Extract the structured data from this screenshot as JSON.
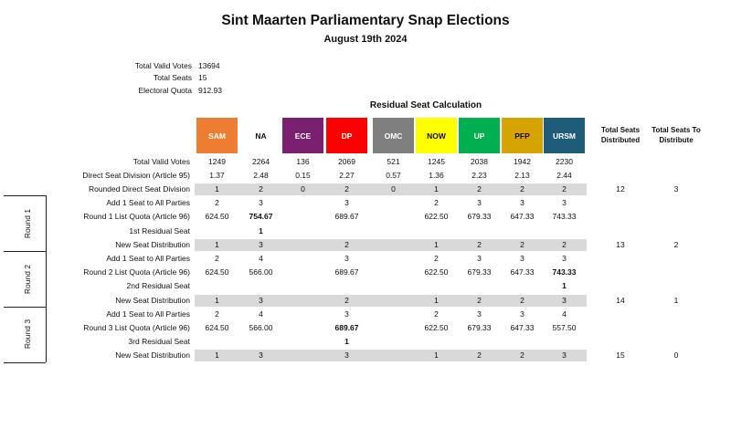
{
  "title": "Sint Maarten Parliamentary Snap Elections",
  "subtitle": "August 19th 2024",
  "summary": [
    {
      "label": "Total Valid Votes",
      "value": "13694"
    },
    {
      "label": "Total Seats",
      "value": "15"
    },
    {
      "label": "Electoral Quota",
      "value": "912.93"
    }
  ],
  "calc_title": "Residual Seat Calculation",
  "parties": [
    {
      "name": "SAM",
      "color": "#ed7d31"
    },
    {
      "name": "NA",
      "color": "#ffffff"
    },
    {
      "name": "ECE",
      "color": "#7b2070"
    },
    {
      "name": "DP",
      "color": "#ff0000"
    },
    {
      "name": "OMC",
      "color": "#7f7f7f"
    },
    {
      "name": "NOW",
      "color": "#ffff00"
    },
    {
      "name": "UP",
      "color": "#00b050"
    },
    {
      "name": "PFP",
      "color": "#d6a400"
    },
    {
      "name": "URSM",
      "color": "#1f5c79"
    }
  ],
  "total_headers": [
    "Total Seats Distributed",
    "Total Seats To Distribute"
  ],
  "rounds": [
    "Round 1",
    "Round 2",
    "Round 3"
  ],
  "rows": [
    {
      "label": "Total Valid Votes",
      "values": [
        "1249",
        "2264",
        "136",
        "2069",
        "521",
        "1245",
        "2038",
        "1942",
        "2230"
      ],
      "band": false,
      "bold": [],
      "totals": [
        "",
        ""
      ]
    },
    {
      "label": "Direct Seat Division (Article 95)",
      "values": [
        "1.37",
        "2.48",
        "0.15",
        "2.27",
        "0.57",
        "1.36",
        "2.23",
        "2.13",
        "2.44"
      ],
      "band": false,
      "bold": [],
      "totals": [
        "",
        ""
      ]
    },
    {
      "label": "Rounded Direct Seat Division",
      "values": [
        "1",
        "2",
        "0",
        "2",
        "0",
        "1",
        "2",
        "2",
        "2"
      ],
      "band": true,
      "bold": [],
      "totals": [
        "12",
        "3"
      ]
    },
    {
      "label": "Add 1 Seat to All Parties",
      "values": [
        "2",
        "3",
        "",
        "3",
        "",
        "2",
        "3",
        "3",
        "3"
      ],
      "band": false,
      "bold": [],
      "totals": [
        "",
        ""
      ]
    },
    {
      "label": "Round 1 List Quota (Article 96)",
      "values": [
        "624.50",
        "754.67",
        "",
        "689.67",
        "",
        "622.50",
        "679.33",
        "647.33",
        "743.33"
      ],
      "band": false,
      "bold": [
        1
      ],
      "totals": [
        "",
        ""
      ]
    },
    {
      "label": "1st Residual Seat",
      "values": [
        "",
        "1",
        "",
        "",
        "",
        "",
        "",
        "",
        ""
      ],
      "band": false,
      "bold": [
        1
      ],
      "totals": [
        "",
        ""
      ]
    },
    {
      "label": "New Seat Distribution",
      "values": [
        "1",
        "3",
        "",
        "2",
        "",
        "1",
        "2",
        "2",
        "2"
      ],
      "band": true,
      "bold": [],
      "totals": [
        "13",
        "2"
      ]
    },
    {
      "label": "Add 1 Seat to All Parties",
      "values": [
        "2",
        "4",
        "",
        "3",
        "",
        "2",
        "3",
        "3",
        "3"
      ],
      "band": false,
      "bold": [],
      "totals": [
        "",
        ""
      ]
    },
    {
      "label": "Round 2 List Quota (Article 96)",
      "values": [
        "624.50",
        "566.00",
        "",
        "689.67",
        "",
        "622.50",
        "679.33",
        "647.33",
        "743.33"
      ],
      "band": false,
      "bold": [
        8
      ],
      "totals": [
        "",
        ""
      ]
    },
    {
      "label": "2nd Residual Seat",
      "values": [
        "",
        "",
        "",
        "",
        "",
        "",
        "",
        "",
        "1"
      ],
      "band": false,
      "bold": [
        8
      ],
      "totals": [
        "",
        ""
      ]
    },
    {
      "label": "New Seat Distribution",
      "values": [
        "1",
        "3",
        "",
        "2",
        "",
        "1",
        "2",
        "2",
        "3"
      ],
      "band": true,
      "bold": [],
      "totals": [
        "14",
        "1"
      ]
    },
    {
      "label": "Add 1 Seat to All Parties",
      "values": [
        "2",
        "4",
        "",
        "3",
        "",
        "2",
        "3",
        "3",
        "4"
      ],
      "band": false,
      "bold": [],
      "totals": [
        "",
        ""
      ]
    },
    {
      "label": "Round 3 List Quota (Article 96)",
      "values": [
        "624.50",
        "566.00",
        "",
        "689.67",
        "",
        "622.50",
        "679.33",
        "647.33",
        "557.50"
      ],
      "band": false,
      "bold": [
        3
      ],
      "totals": [
        "",
        ""
      ]
    },
    {
      "label": "3rd Residual Seat",
      "values": [
        "",
        "",
        "",
        "1",
        "",
        "",
        "",
        "",
        ""
      ],
      "band": false,
      "bold": [
        3
      ],
      "totals": [
        "",
        ""
      ]
    },
    {
      "label": "New Seat Distribution",
      "values": [
        "1",
        "3",
        "",
        "3",
        "",
        "1",
        "2",
        "2",
        "3"
      ],
      "band": true,
      "bold": [],
      "totals": [
        "15",
        "0"
      ]
    }
  ]
}
